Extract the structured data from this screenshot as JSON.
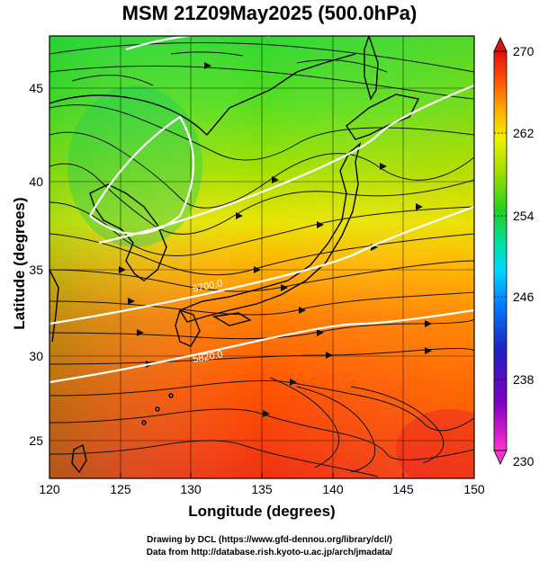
{
  "title": "MSM 21Z09May2025 (500.0hPa)",
  "axes": {
    "xlabel": "Longitude (degrees)",
    "ylabel": "Latitude  (degrees)",
    "x_range": [
      120,
      150
    ],
    "y_range": [
      22.4,
      47.6
    ],
    "x_ticks": [
      "120",
      "125",
      "130",
      "135",
      "140",
      "145",
      "150"
    ],
    "y_ticks": [
      "25",
      "30",
      "35",
      "40",
      "45"
    ]
  },
  "colorbar": {
    "min": 230,
    "max": 270,
    "tick_labels": [
      "270",
      "262",
      "254",
      "246",
      "238",
      "230"
    ],
    "colors": [
      "#ff33cc",
      "#8000c0",
      "#2020c0",
      "#0080ff",
      "#00d8ff",
      "#00e0a0",
      "#20d020",
      "#a0e000",
      "#f0f000",
      "#ffb000",
      "#ff5000",
      "#e01010"
    ]
  },
  "contours": {
    "labels": [
      "5700.0",
      "5820.0"
    ]
  },
  "credits": {
    "line1": "Drawing by DCL (https://www.gfd-dennou.org/library/dcl/)",
    "line2": "Data from http://database.rish.kyoto-u.ac.jp/arch/jmadata/"
  }
}
